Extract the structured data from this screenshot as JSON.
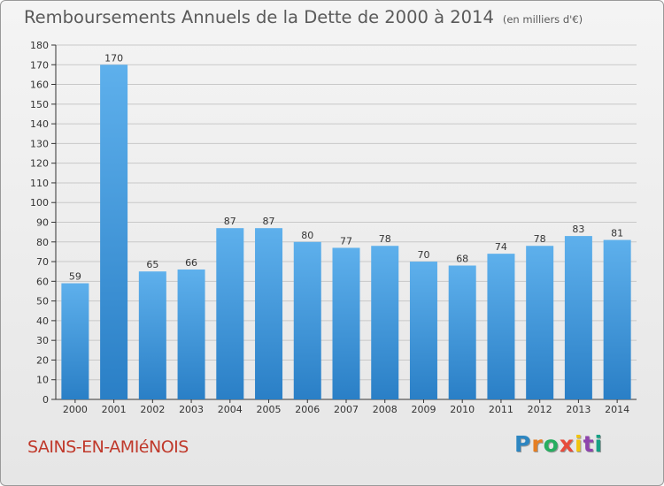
{
  "title": "Remboursements Annuels de la Dette de 2000 à 2014",
  "unit": "(en milliers d'€)",
  "place": "SAINS-EN-AMIéNOIS",
  "logo": "Proxiti",
  "colors": {
    "bar_top": "#5eb0ec",
    "bar_bottom": "#2a7fc6",
    "title": "#5a5a5a",
    "place": "#c0392b",
    "grid": "#c8c8c8"
  },
  "chart_data": {
    "type": "bar",
    "title": "Remboursements Annuels de la Dette de 2000 à 2014",
    "ylabel": "en milliers d'€",
    "xlabel": "",
    "categories": [
      "2000",
      "2001",
      "2002",
      "2003",
      "2004",
      "2005",
      "2006",
      "2007",
      "2008",
      "2009",
      "2010",
      "2011",
      "2012",
      "2013",
      "2014"
    ],
    "values": [
      59,
      170,
      65,
      66,
      87,
      87,
      80,
      77,
      78,
      70,
      68,
      74,
      78,
      83,
      81
    ],
    "ylim": [
      0,
      180
    ],
    "ytick_step": 10,
    "grid": true
  }
}
